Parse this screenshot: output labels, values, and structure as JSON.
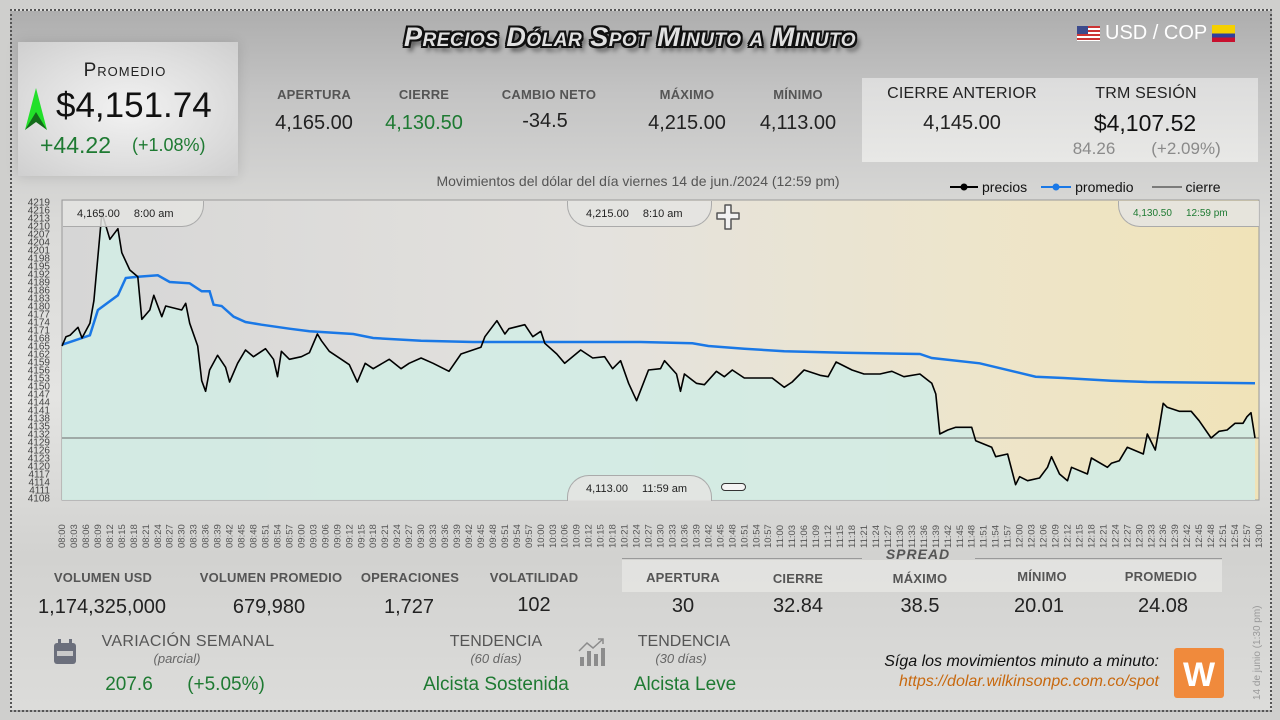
{
  "header": {
    "title": "Precios Dólar Spot Minuto a Minuto",
    "pair": "USD / COP",
    "flag_left": "us-flag-icon",
    "flag_right": "colombia-flag-icon"
  },
  "promedio": {
    "label": "Promedio",
    "value": "$4,151.74",
    "change": "+44.22",
    "change_pct": "(+1.08%)",
    "trend_icon": "up-arrow-icon"
  },
  "stats": [
    {
      "label": "APERTURA",
      "value": "4,165.00"
    },
    {
      "label": "CIERRE",
      "value": "4,130.50"
    },
    {
      "label": "CAMBIO NETO",
      "value": "-34.5"
    },
    {
      "label": "MÁXIMO",
      "value": "4,215.00"
    },
    {
      "label": "MÍNIMO",
      "value": "4,113.00"
    }
  ],
  "cierre_anterior": {
    "label": "CIERRE ANTERIOR",
    "value": "4,145.00"
  },
  "trm": {
    "label": "TRM SESIÓN",
    "value": "$4,107.52",
    "change": "84.26",
    "change_pct": "(+2.09%)"
  },
  "chart_subtitle": "Movimientos del dólar del día viernes 14 de jun./2024 (12:59 pm)",
  "legend": {
    "precios": "precios",
    "promedio": "promedio",
    "cierre": "cierre"
  },
  "tooltips": {
    "open": {
      "value": "4,165.00",
      "time": "8:00 am"
    },
    "max": {
      "value": "4,215.00",
      "time": "8:10 am"
    },
    "min": {
      "value": "4,113.00",
      "time": "11:59 am"
    },
    "close": {
      "value": "4,130.50",
      "time": "12:59 pm"
    }
  },
  "zoom_controls": {
    "zoom_in": "plus-icon",
    "zoom_out": "minus-icon"
  },
  "colors": {
    "precios": "#000000",
    "promedio": "#1a78e6",
    "cierre": "#6b6b6b",
    "area": "#d2ece4",
    "positive": "#1e7a32",
    "brand": "#f08a3c"
  },
  "chart_data": {
    "type": "line",
    "ylim": [
      4108,
      4219
    ],
    "xlim": [
      "08:00",
      "13:00"
    ],
    "yticks": [
      4108,
      4111,
      4114,
      4117,
      4120,
      4123,
      4126,
      4129,
      4132,
      4135,
      4138,
      4141,
      4144,
      4147,
      4150,
      4153,
      4156,
      4159,
      4162,
      4165,
      4168,
      4171,
      4174,
      4177,
      4180,
      4183,
      4186,
      4189,
      4192,
      4195,
      4198,
      4201,
      4204,
      4207,
      4210,
      4213,
      4216,
      4219
    ],
    "xticks": [
      "08:00",
      "08:03",
      "08:06",
      "08:09",
      "08:12",
      "08:15",
      "08:18",
      "08:21",
      "08:24",
      "08:27",
      "08:30",
      "08:33",
      "08:36",
      "08:39",
      "08:42",
      "08:45",
      "08:48",
      "08:51",
      "08:54",
      "08:57",
      "09:00",
      "09:03",
      "09:06",
      "09:09",
      "09:12",
      "09:15",
      "09:18",
      "09:21",
      "09:24",
      "09:27",
      "09:30",
      "09:33",
      "09:36",
      "09:39",
      "09:42",
      "09:45",
      "09:48",
      "09:51",
      "09:54",
      "09:57",
      "10:00",
      "10:03",
      "10:06",
      "10:09",
      "10:12",
      "10:15",
      "10:18",
      "10:21",
      "10:24",
      "10:27",
      "10:30",
      "10:33",
      "10:36",
      "10:39",
      "10:42",
      "10:45",
      "10:48",
      "10:51",
      "10:54",
      "10:57",
      "11:00",
      "11:03",
      "11:06",
      "11:09",
      "11:12",
      "11:15",
      "11:18",
      "11:21",
      "11:24",
      "11:27",
      "11:30",
      "11:33",
      "11:36",
      "11:39",
      "11:42",
      "11:45",
      "11:48",
      "11:51",
      "11:54",
      "11:57",
      "12:00",
      "12:03",
      "12:06",
      "12:09",
      "12:12",
      "12:15",
      "12:18",
      "12:21",
      "12:24",
      "12:27",
      "12:30",
      "12:33",
      "12:36",
      "12:39",
      "12:42",
      "12:45",
      "12:48",
      "12:51",
      "12:54",
      "12:57",
      "13:00"
    ],
    "series": [
      {
        "name": "precios",
        "points": [
          [
            "08:00",
            4165
          ],
          [
            "08:01",
            4168.5
          ],
          [
            "08:02",
            4169
          ],
          [
            "08:04",
            4172
          ],
          [
            "08:05",
            4168
          ],
          [
            "08:07",
            4173.5
          ],
          [
            "08:08",
            4182
          ],
          [
            "08:09",
            4198.5
          ],
          [
            "08:10",
            4215
          ],
          [
            "08:12",
            4205
          ],
          [
            "08:14",
            4209
          ],
          [
            "08:15",
            4200
          ],
          [
            "08:17",
            4193.5
          ],
          [
            "08:19",
            4191
          ],
          [
            "08:20",
            4175
          ],
          [
            "08:22",
            4178.5
          ],
          [
            "08:23",
            4184
          ],
          [
            "08:25",
            4176
          ],
          [
            "08:26",
            4180
          ],
          [
            "08:30",
            4178.5
          ],
          [
            "08:31",
            4181
          ],
          [
            "08:32",
            4173.5
          ],
          [
            "08:34",
            4165
          ],
          [
            "08:35",
            4152
          ],
          [
            "08:36",
            4148
          ],
          [
            "08:37",
            4156
          ],
          [
            "08:39",
            4161.5
          ],
          [
            "08:41",
            4157
          ],
          [
            "08:42",
            4151.5
          ],
          [
            "08:44",
            4158.5
          ],
          [
            "08:46",
            4163.5
          ],
          [
            "08:48",
            4161
          ],
          [
            "08:51",
            4164
          ],
          [
            "08:53",
            4160
          ],
          [
            "08:54",
            4153.5
          ],
          [
            "08:55",
            4163
          ],
          [
            "08:57",
            4160
          ],
          [
            "09:00",
            4161
          ],
          [
            "09:02",
            4162.5
          ],
          [
            "09:04",
            4169.5
          ],
          [
            "09:05",
            4167
          ],
          [
            "09:07",
            4163
          ],
          [
            "09:10",
            4160
          ],
          [
            "09:12",
            4158
          ],
          [
            "09:14",
            4151.5
          ],
          [
            "09:16",
            4158.5
          ],
          [
            "09:18",
            4156.5
          ],
          [
            "09:22",
            4160
          ],
          [
            "09:25",
            4156.5
          ],
          [
            "09:27",
            4158.5
          ],
          [
            "09:30",
            4160.5
          ],
          [
            "09:33",
            4158.5
          ],
          [
            "09:37",
            4155.5
          ],
          [
            "09:40",
            4162
          ],
          [
            "09:45",
            4164.5
          ],
          [
            "09:46",
            4168.5
          ],
          [
            "09:49",
            4174.5
          ],
          [
            "09:51",
            4169.5
          ],
          [
            "09:52",
            4171.5
          ],
          [
            "09:56",
            4173
          ],
          [
            "09:58",
            4168.5
          ],
          [
            "10:00",
            4170.5
          ],
          [
            "10:01",
            4166
          ],
          [
            "10:04",
            4162
          ],
          [
            "10:06",
            4158.5
          ],
          [
            "10:10",
            4163.5
          ],
          [
            "10:13",
            4160.5
          ],
          [
            "10:16",
            4161
          ],
          [
            "10:18",
            4156.5
          ],
          [
            "10:20",
            4159.5
          ],
          [
            "10:22",
            4151
          ],
          [
            "10:24",
            4144.5
          ],
          [
            "10:27",
            4156
          ],
          [
            "10:30",
            4156.5
          ],
          [
            "10:31",
            4159.5
          ],
          [
            "10:34",
            4154.5
          ],
          [
            "10:35",
            4148
          ],
          [
            "10:36",
            4154.5
          ],
          [
            "10:39",
            4151
          ],
          [
            "10:41",
            4150.5
          ],
          [
            "10:44",
            4155.5
          ],
          [
            "10:46",
            4153.5
          ],
          [
            "10:48",
            4156
          ],
          [
            "10:51",
            4153
          ],
          [
            "10:58",
            4153
          ],
          [
            "11:01",
            4149.5
          ],
          [
            "11:03",
            4151.5
          ],
          [
            "11:06",
            4156
          ],
          [
            "11:10",
            4154
          ],
          [
            "11:12",
            4153.5
          ],
          [
            "11:14",
            4159
          ],
          [
            "11:18",
            4156
          ],
          [
            "11:21",
            4154.5
          ],
          [
            "11:25",
            4154.5
          ],
          [
            "11:28",
            4155.5
          ],
          [
            "11:31",
            4153.5
          ],
          [
            "11:35",
            4154.5
          ],
          [
            "11:38",
            4151
          ],
          [
            "11:39",
            4147
          ],
          [
            "11:40",
            4132
          ],
          [
            "11:42",
            4133.5
          ],
          [
            "11:44",
            4134.5
          ],
          [
            "11:48",
            4134.5
          ],
          [
            "11:49",
            4129.5
          ],
          [
            "11:53",
            4127
          ],
          [
            "11:54",
            4123.5
          ],
          [
            "11:57",
            4124.5
          ],
          [
            "11:59",
            4113
          ],
          [
            "12:00",
            4116
          ],
          [
            "12:02",
            4114.5
          ],
          [
            "12:05",
            4115.5
          ],
          [
            "12:07",
            4119.5
          ],
          [
            "12:08",
            4123.5
          ],
          [
            "12:10",
            4117
          ],
          [
            "12:12",
            4114.5
          ],
          [
            "12:13",
            4119.5
          ],
          [
            "12:17",
            4117
          ],
          [
            "12:18",
            4123
          ],
          [
            "12:22",
            4119.5
          ],
          [
            "12:23",
            4121
          ],
          [
            "12:25",
            4122
          ],
          [
            "12:27",
            4127
          ],
          [
            "12:31",
            4124.5
          ],
          [
            "12:32",
            4132
          ],
          [
            "12:34",
            4126
          ],
          [
            "12:35",
            4134.5
          ],
          [
            "12:36",
            4143.5
          ],
          [
            "12:37",
            4142
          ],
          [
            "12:40",
            4140.5
          ],
          [
            "12:43",
            4140.5
          ],
          [
            "12:45",
            4137
          ],
          [
            "12:48",
            4130.5
          ],
          [
            "12:50",
            4133
          ],
          [
            "12:52",
            4133.5
          ],
          [
            "12:54",
            4136
          ],
          [
            "12:56",
            4136
          ],
          [
            "12:57",
            4138.5
          ],
          [
            "12:58",
            4140
          ],
          [
            "12:59",
            4130.5
          ]
        ]
      },
      {
        "name": "promedio",
        "points": [
          [
            "08:00",
            4165.5
          ],
          [
            "08:03",
            4167
          ],
          [
            "08:07",
            4169
          ],
          [
            "08:09",
            4178.5
          ],
          [
            "08:14",
            4184
          ],
          [
            "08:16",
            4190.5
          ],
          [
            "08:19",
            4191
          ],
          [
            "08:24",
            4191.5
          ],
          [
            "08:27",
            4189
          ],
          [
            "08:32",
            4188.5
          ],
          [
            "08:35",
            4185.5
          ],
          [
            "08:37",
            4185.5
          ],
          [
            "08:38",
            4180.5
          ],
          [
            "08:40",
            4180
          ],
          [
            "08:43",
            4176
          ],
          [
            "08:46",
            4174
          ],
          [
            "08:50",
            4173
          ],
          [
            "08:57",
            4171.5
          ],
          [
            "09:02",
            4170.5
          ],
          [
            "09:13",
            4169.5
          ],
          [
            "09:18",
            4168
          ],
          [
            "09:30",
            4167
          ],
          [
            "09:43",
            4166.5
          ],
          [
            "10:25",
            4166.5
          ],
          [
            "10:38",
            4166
          ],
          [
            "10:42",
            4165
          ],
          [
            "10:51",
            4164
          ],
          [
            "11:01",
            4163
          ],
          [
            "11:16",
            4162.5
          ],
          [
            "11:35",
            4162
          ],
          [
            "11:38",
            4160.5
          ],
          [
            "11:50",
            4158.5
          ],
          [
            "12:04",
            4153.5
          ],
          [
            "12:11",
            4153
          ],
          [
            "12:23",
            4152
          ],
          [
            "12:32",
            4151.5
          ],
          [
            "12:59",
            4151
          ]
        ]
      },
      {
        "name": "cierre",
        "value": 4130.5
      }
    ]
  },
  "bottom_stats": [
    {
      "label": "VOLUMEN USD",
      "value": "1,174,325,000"
    },
    {
      "label": "VOLUMEN PROMEDIO",
      "value": "679,980"
    },
    {
      "label": "OPERACIONES",
      "value": "1,727"
    },
    {
      "label": "VOLATILIDAD",
      "value": "102"
    }
  ],
  "spread": {
    "title": "SPREAD",
    "items": [
      {
        "label": "APERTURA",
        "value": "30"
      },
      {
        "label": "CIERRE",
        "value": "32.84"
      },
      {
        "label": "MÁXIMO",
        "value": "38.5"
      },
      {
        "label": "MÍNIMO",
        "value": "20.01"
      },
      {
        "label": "PROMEDIO",
        "value": "24.08"
      }
    ]
  },
  "variacion": {
    "label": "VARIACIÓN SEMANAL",
    "sub": "(parcial)",
    "value": "207.6",
    "pct": "(+5.05%)",
    "icon": "calendar-icon"
  },
  "tendencia60": {
    "label": "TENDENCIA",
    "sub": "(60 días)",
    "value": "Alcista Sostenida"
  },
  "tendencia30": {
    "label": "TENDENCIA",
    "sub": "(30 días)",
    "value": "Alcista Leve",
    "icon": "trend-chart-icon"
  },
  "footer": {
    "cta": "Síga los movimientos minuto a minuto:",
    "url": "https://dolar.wilkinsonpc.com.co/spot",
    "logo": "W",
    "stamp": "14 de junio (1:30 pm)"
  }
}
